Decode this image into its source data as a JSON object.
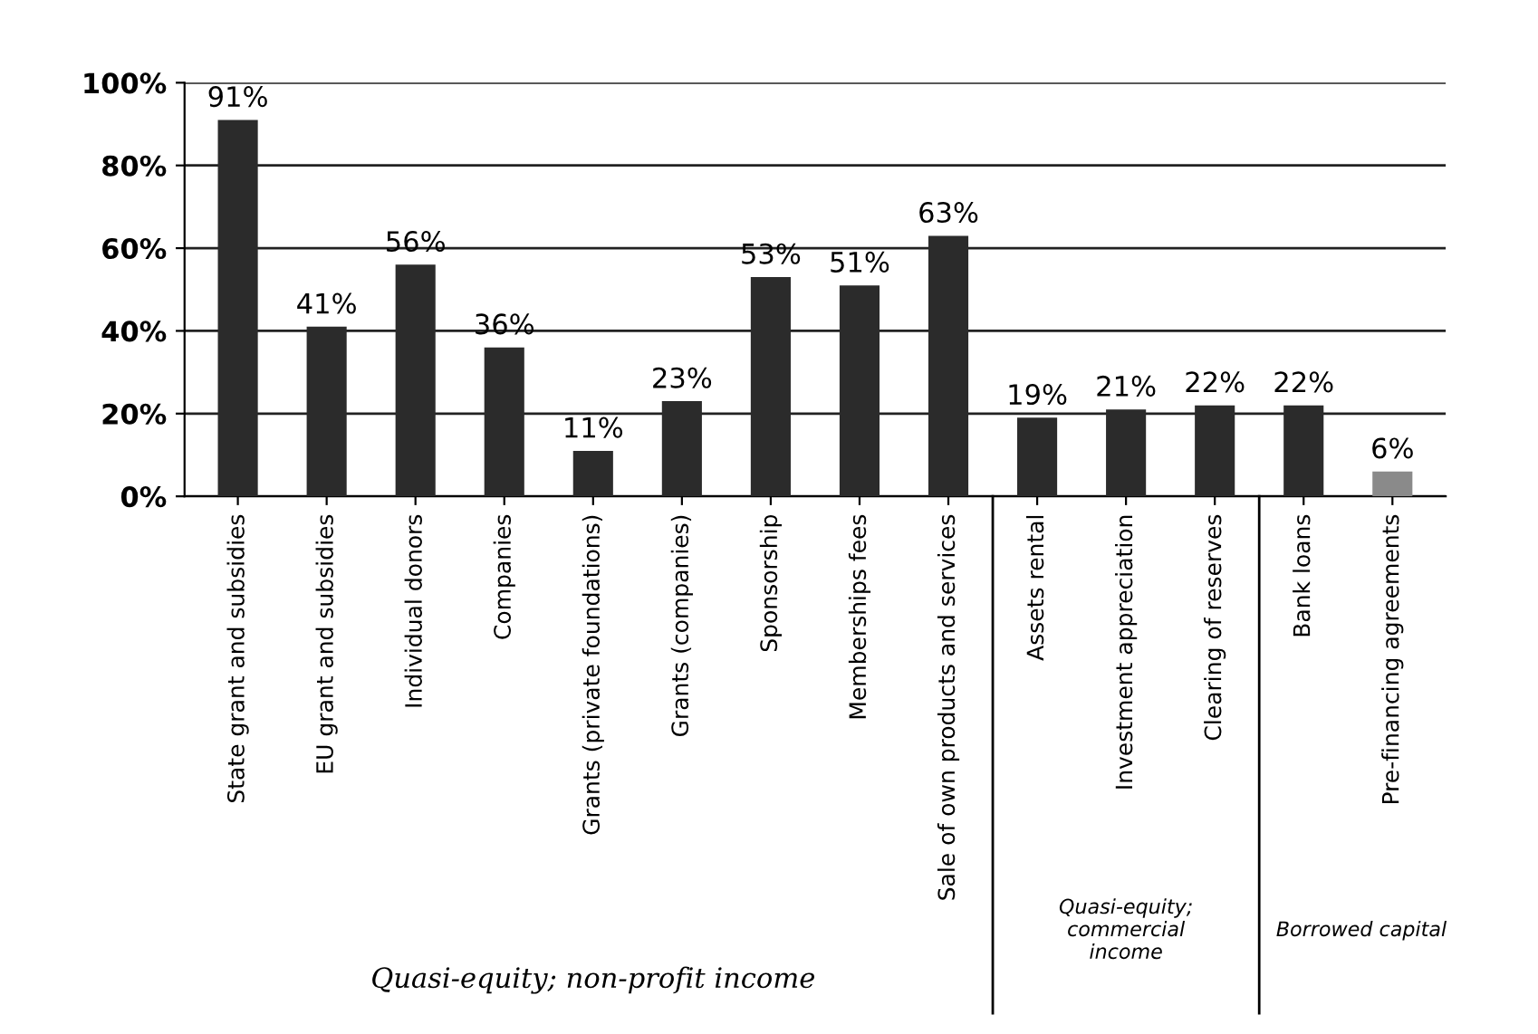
{
  "chart_data": {
    "type": "bar",
    "categories": [
      "State grant and subsidies",
      "EU grant and subsidies",
      "Individual donors",
      "Companies",
      "Grants (private foundations)",
      "Grants (companies)",
      "Sponsorship",
      "Memberships fees",
      "Sale of own products and services",
      "Assets rental",
      "Investment appreciation",
      "Clearing of reserves",
      "Bank loans",
      "Pre-financing agreements"
    ],
    "values": [
      91,
      41,
      56,
      36,
      11,
      23,
      53,
      51,
      63,
      19,
      21,
      22,
      22,
      6
    ],
    "value_labels": [
      "91%",
      "41%",
      "56%",
      "36%",
      "11%",
      "23%",
      "53%",
      "51%",
      "63%",
      "19%",
      "21%",
      "22%",
      "22%",
      "6%"
    ],
    "colors": [
      "#2b2b2b",
      "#2b2b2b",
      "#2b2b2b",
      "#2b2b2b",
      "#2b2b2b",
      "#2b2b2b",
      "#2b2b2b",
      "#2b2b2b",
      "#2b2b2b",
      "#2b2b2b",
      "#2b2b2b",
      "#2b2b2b",
      "#2b2b2b",
      "#8a8a8a"
    ],
    "ylim": [
      0,
      100
    ],
    "yticks": [
      {
        "value": 0,
        "label": "0%"
      },
      {
        "value": 20,
        "label": "20%"
      },
      {
        "value": 40,
        "label": "40%"
      },
      {
        "value": 60,
        "label": "60%"
      },
      {
        "value": 80,
        "label": "80%"
      },
      {
        "value": 100,
        "label": "100%"
      }
    ],
    "grid": "y",
    "annotations": [
      "Quasi-equity; non-profit income",
      "Quasi-equity;\ncommercial\nincome",
      "Borrowed capital"
    ]
  }
}
